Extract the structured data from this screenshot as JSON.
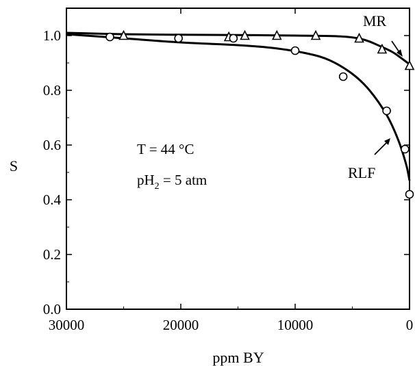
{
  "chart_data": {
    "type": "scatter",
    "title": "",
    "xlabel": "ppm BY",
    "ylabel": "S",
    "xlim": [
      30000,
      0
    ],
    "ylim": [
      0.0,
      1.05
    ],
    "x_reversed": true,
    "x_ticks": [
      "30000",
      "20000",
      "10000",
      "0"
    ],
    "x_tick_values": [
      30000,
      20000,
      10000,
      0
    ],
    "y_ticks": [
      "0.0",
      "0.2",
      "0.4",
      "0.6",
      "0.8",
      "1.0"
    ],
    "y_tick_values": [
      0.0,
      0.2,
      0.4,
      0.6,
      0.8,
      1.0
    ],
    "grid": false,
    "annotations": [
      "T = 44 °C",
      "pH",
      "2",
      " = 5 atm"
    ],
    "series": [
      {
        "name": "MR",
        "marker": "triangle",
        "x": [
          25000,
          15800,
          14400,
          11600,
          8200,
          4400,
          2400,
          0
        ],
        "y": [
          1.0,
          0.995,
          1.0,
          1.0,
          1.0,
          0.99,
          0.95,
          0.89
        ],
        "fit_x": [
          30000,
          25000,
          20000,
          15000,
          10000,
          6000,
          4000,
          2500,
          1500,
          800,
          0
        ],
        "fit_y": [
          1.01,
          1.005,
          1.003,
          1.002,
          1.0,
          0.997,
          0.985,
          0.96,
          0.94,
          0.92,
          0.895
        ]
      },
      {
        "name": "RLF",
        "marker": "circle",
        "x": [
          26200,
          20200,
          15400,
          10000,
          5800,
          2000,
          400,
          0
        ],
        "y": [
          0.995,
          0.99,
          0.99,
          0.945,
          0.85,
          0.725,
          0.585,
          0.42
        ],
        "fit_x": [
          30000,
          25000,
          20000,
          15000,
          12000,
          9000,
          7000,
          5000,
          3500,
          2000,
          1000,
          300,
          0
        ],
        "fit_y": [
          1.005,
          0.99,
          0.975,
          0.965,
          0.955,
          0.935,
          0.91,
          0.86,
          0.8,
          0.71,
          0.62,
          0.53,
          0.47
        ]
      }
    ]
  }
}
